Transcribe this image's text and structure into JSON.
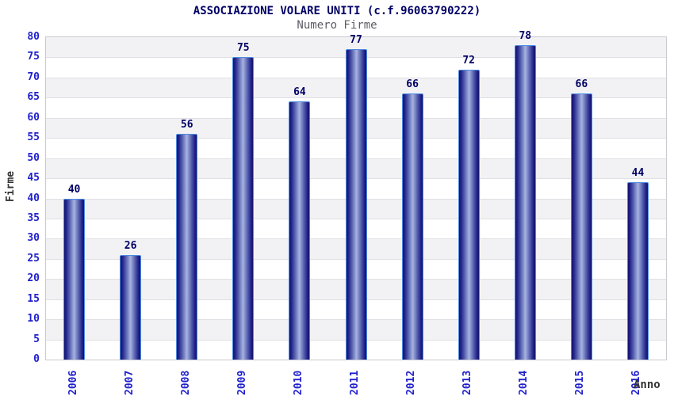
{
  "chart_data": {
    "type": "bar",
    "title": "ASSOCIAZIONE VOLARE UNITI (c.f.96063790222)",
    "subtitle": "Numero Firme",
    "xlabel": "Anno",
    "ylabel": "Firme",
    "categories": [
      "2006",
      "2007",
      "2008",
      "2009",
      "2010",
      "2011",
      "2012",
      "2013",
      "2014",
      "2015",
      "2016"
    ],
    "values": [
      40,
      26,
      56,
      75,
      64,
      77,
      66,
      72,
      78,
      66,
      44
    ],
    "ylim": [
      0,
      80
    ],
    "ytick_step": 5,
    "legend": "none",
    "grid": "horizontal alternating bands every 5 units, gray band just below each multiple of 10+5 (5-10, 15-20, ... 75-80)",
    "colors": {
      "bar_dark": "#13136b",
      "bar_light": "#a8b3e2",
      "bar_border": "#4d8ce0",
      "tick_label": "#2121cd",
      "title": "#000066",
      "subtitle": "#5c5c66",
      "value_label": "#000066",
      "axis_label": "#333333",
      "band_gray": "#f2f2f4",
      "grid_line": "#e0e0e4",
      "plot_border": "#c9c9cf",
      "background": "#ffffff"
    }
  }
}
